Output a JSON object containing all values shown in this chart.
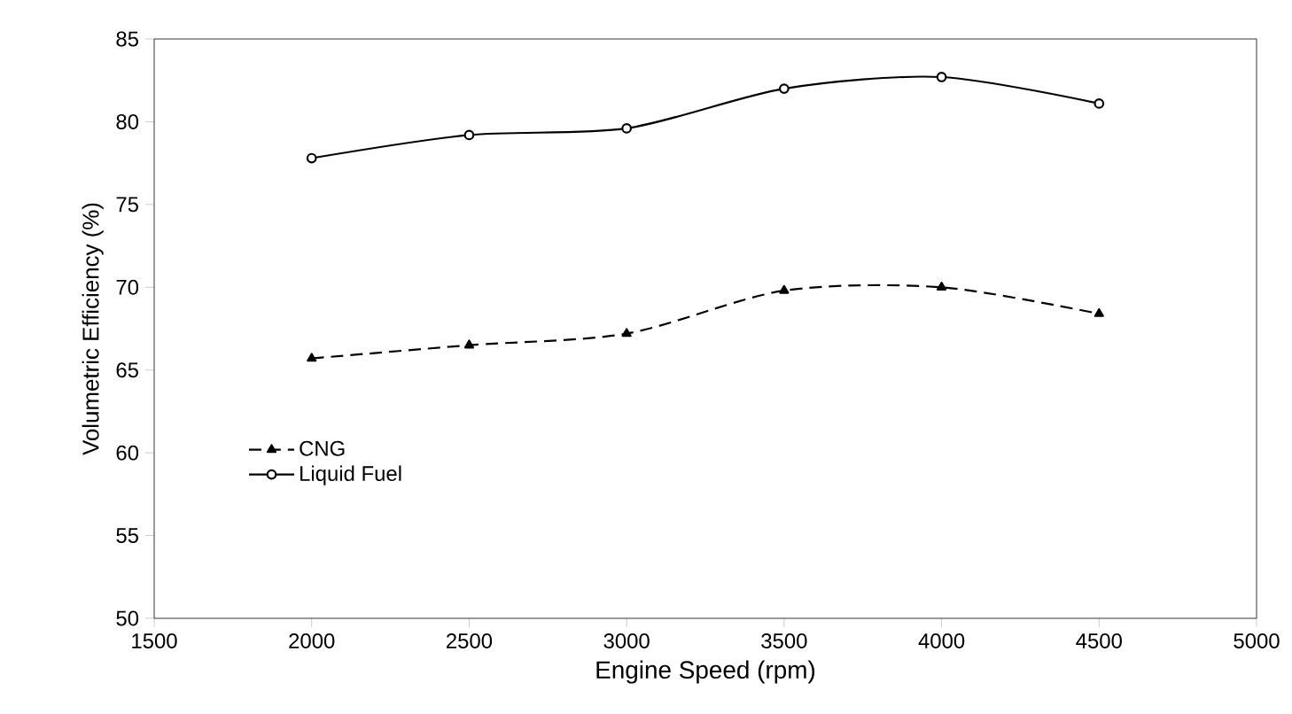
{
  "chart_data": {
    "type": "line",
    "xlabel": "Engine Speed (rpm)",
    "ylabel": "Volumetric Efficiency (%)",
    "x": [
      2000,
      2500,
      3000,
      3500,
      4000,
      4500
    ],
    "series": [
      {
        "name": "CNG",
        "color": "#000000",
        "marker": "triangle",
        "line_style": "dashed",
        "values": [
          65.7,
          66.5,
          67.2,
          69.8,
          70.0,
          68.4
        ]
      },
      {
        "name": "Liquid Fuel",
        "color": "#000000",
        "marker": "circle",
        "line_style": "solid",
        "values": [
          77.8,
          79.2,
          79.6,
          82.0,
          82.7,
          81.1
        ]
      }
    ],
    "xlim": [
      1500,
      5000
    ],
    "xticks": [
      1500,
      2000,
      2500,
      3000,
      3500,
      4000,
      4500,
      5000
    ],
    "ylim": [
      50,
      85
    ],
    "yticks": [
      50,
      55,
      60,
      65,
      70,
      75,
      80,
      85
    ],
    "legend": "bottom left",
    "grid": false
  }
}
